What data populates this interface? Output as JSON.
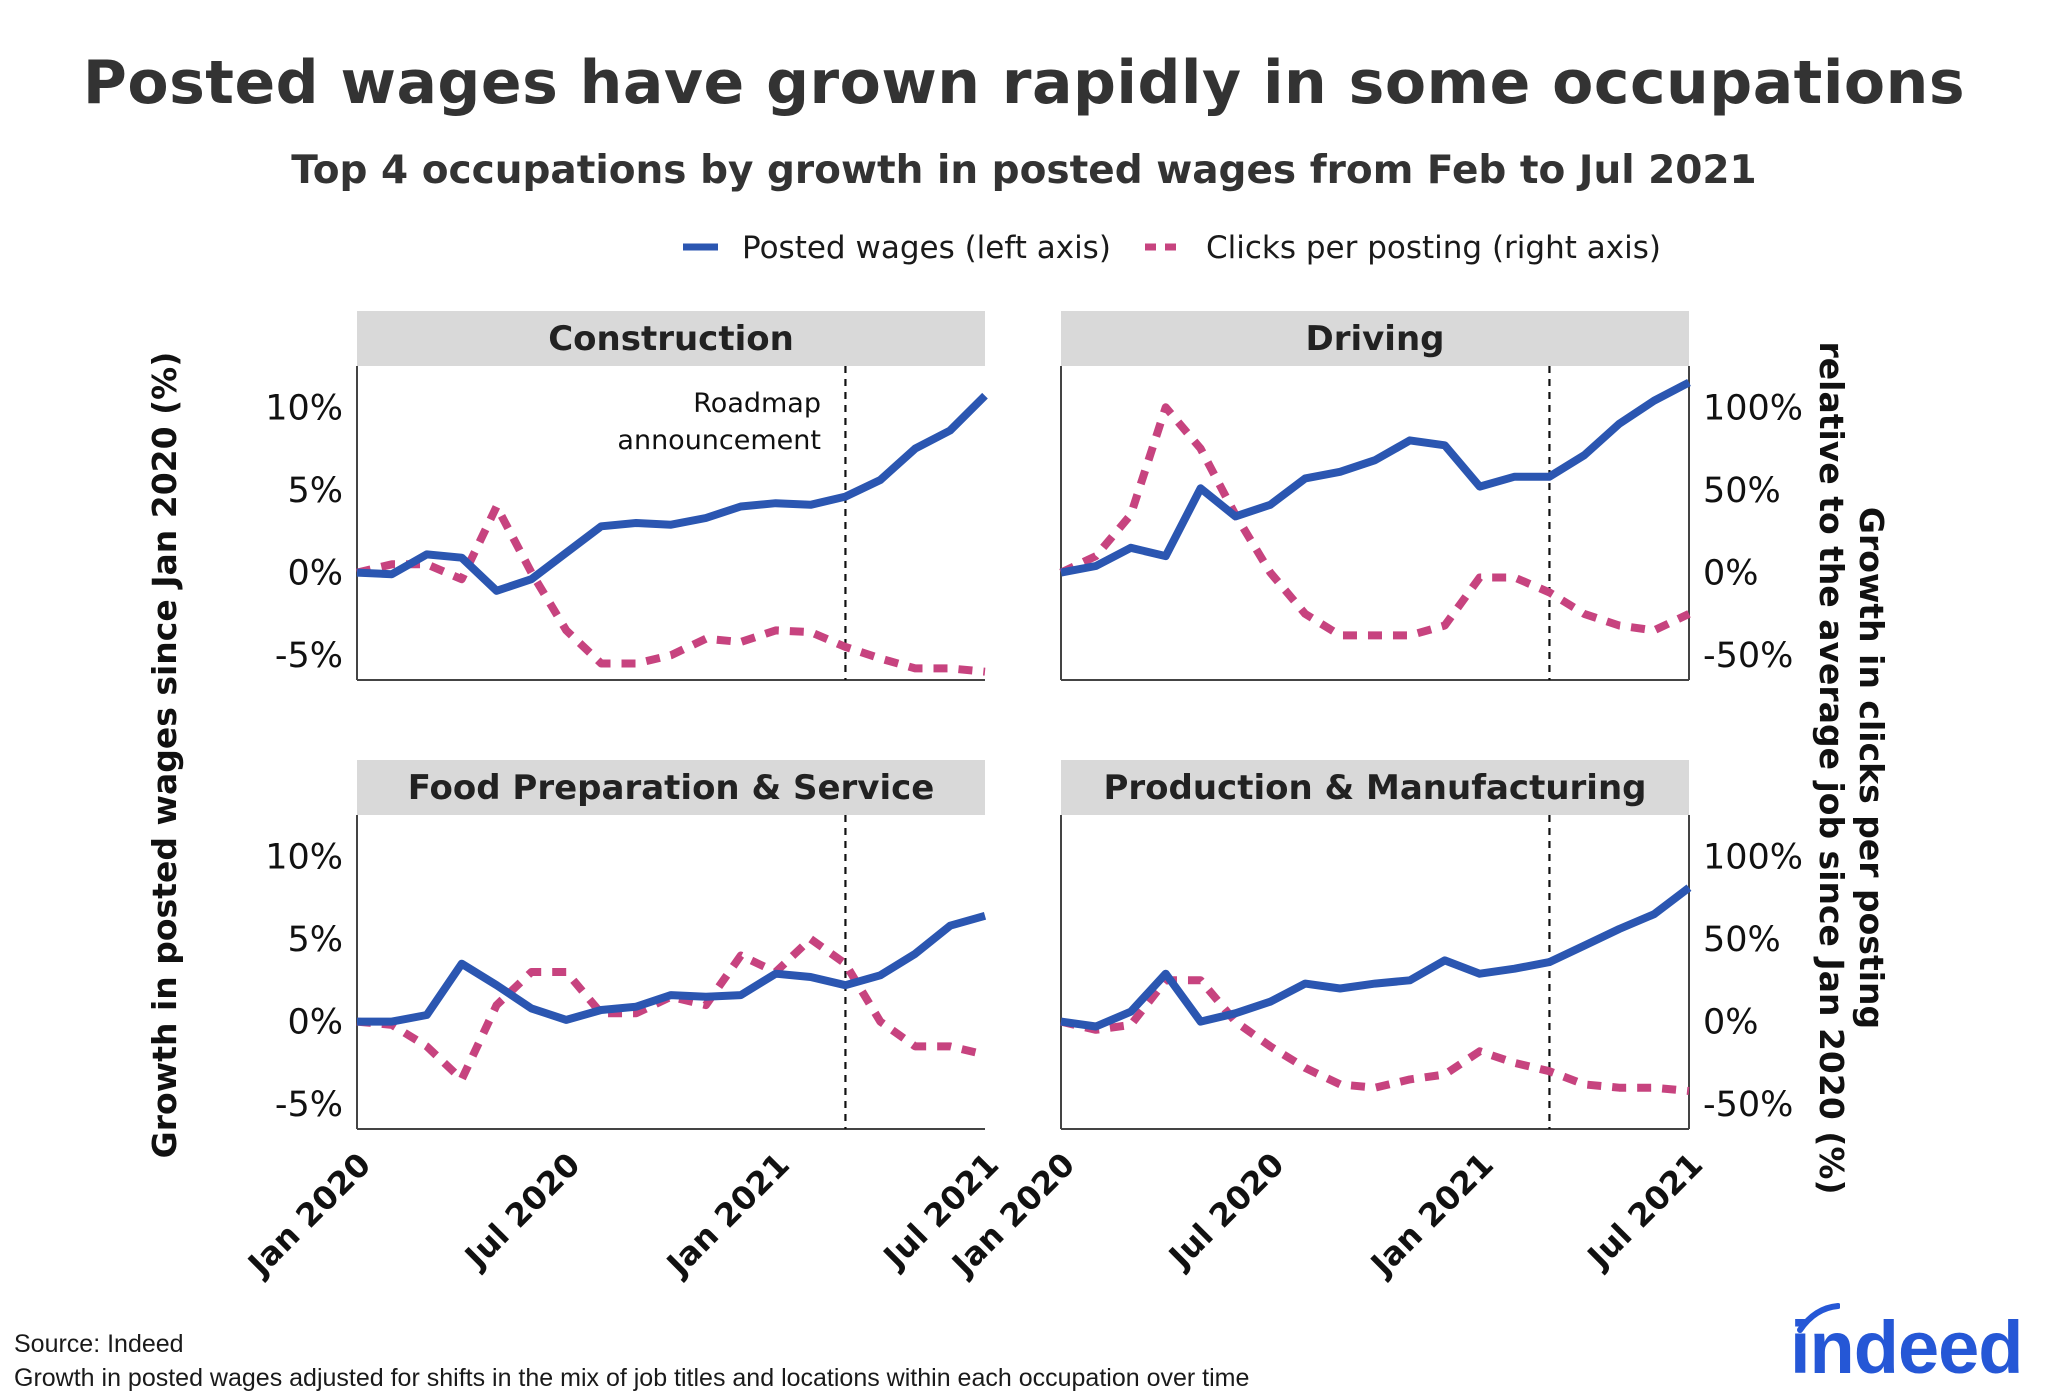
{
  "title": "Posted wages have grown rapidly in some occupations",
  "subtitle": "Top 4 occupations by growth in posted wages from Feb to Jul 2021",
  "legend": {
    "wages_label": "Posted wages (left axis)",
    "clicks_label": "Clicks per posting (right axis)"
  },
  "colors": {
    "wages": "#2b56b1",
    "clicks": "#c7437f",
    "strip": "#d9d9d9",
    "axis": "#444444"
  },
  "axes": {
    "left_label": "Growth in posted wages since Jan 2020 (%)",
    "right_label_line1": "Growth in clicks per posting",
    "right_label_line2": "relative to the average job since Jan 2020 (%)",
    "left_ticks": [
      "10%",
      "5%",
      "0%",
      "-5%"
    ],
    "right_ticks": [
      "100%",
      "50%",
      "0%",
      "-50%"
    ],
    "x_ticks": [
      "Jan 2020",
      "Jul 2020",
      "Jan 2021",
      "Jul 2021"
    ]
  },
  "annotation": {
    "line1": "Roadmap",
    "line2": "announcement",
    "month_index": 14
  },
  "source": "Source: Indeed",
  "note": "Growth in posted wages adjusted for shifts in the mix of job titles and locations within each occupation over time",
  "logo_text": "indeed",
  "chart_data": {
    "type": "line",
    "x": [
      "Jan 2020",
      "Feb 2020",
      "Mar 2020",
      "Apr 2020",
      "May 2020",
      "Jun 2020",
      "Jul 2020",
      "Aug 2020",
      "Sep 2020",
      "Oct 2020",
      "Nov 2020",
      "Dec 2020",
      "Jan 2021",
      "Feb 2021",
      "Mar 2021",
      "Apr 2021",
      "May 2021",
      "Jun 2021",
      "Jul 2021"
    ],
    "left_ylim": [
      -6.5,
      12.5
    ],
    "right_ylim": [
      -65,
      125
    ],
    "panels": [
      {
        "title": "Construction",
        "wages": [
          0,
          -0.1,
          1.1,
          0.9,
          -1.1,
          -0.4,
          1.2,
          2.8,
          3.0,
          2.9,
          3.3,
          4.0,
          4.2,
          4.1,
          4.6,
          5.6,
          7.5,
          8.6,
          10.7
        ],
        "clicks": [
          0,
          5,
          5,
          -4,
          40,
          0,
          -35,
          -55,
          -55,
          -50,
          -40,
          -42,
          -35,
          -36,
          -45,
          -52,
          -58,
          -58,
          -60
        ]
      },
      {
        "title": "Driving",
        "wages": [
          0,
          0.4,
          1.5,
          1.0,
          5.1,
          3.4,
          4.1,
          5.7,
          6.1,
          6.8,
          8.0,
          7.7,
          5.2,
          5.8,
          5.8,
          7.1,
          9.0,
          10.4,
          11.5
        ]
      },
      {
        "title": "Food Preparation & Service",
        "wages": [
          0,
          0,
          0.4,
          3.5,
          2.2,
          0.8,
          0.1,
          0.7,
          0.9,
          1.6,
          1.5,
          1.6,
          2.9,
          2.7,
          2.2,
          2.8,
          4.1,
          5.8,
          6.4
        ],
        "clicks": [
          0,
          -2,
          -15,
          -35,
          10,
          30,
          30,
          5,
          5,
          15,
          10,
          40,
          30,
          50,
          35,
          0,
          -15,
          -15,
          -20
        ]
      },
      {
        "title": "Production & Manufacturing",
        "wages": [
          0,
          -0.3,
          0.6,
          2.9,
          0,
          0.5,
          1.2,
          2.3,
          2.0,
          2.3,
          2.5,
          3.7,
          2.9,
          3.2,
          3.6,
          4.6,
          5.6,
          6.5,
          8.1
        ],
        "clicks": [
          0,
          -5,
          -2,
          25,
          25,
          0,
          -15,
          -28,
          -38,
          -40,
          -35,
          -32,
          -18,
          -25,
          -30,
          -38,
          -40,
          -40,
          -42
        ]
      }
    ],
    "driving_clicks": [
      0,
      10,
      35,
      100,
      75,
      35,
      0,
      -25,
      -38,
      -38,
      -38,
      -32,
      -3,
      -3,
      -12,
      -25,
      -32,
      -35,
      -25
    ]
  }
}
